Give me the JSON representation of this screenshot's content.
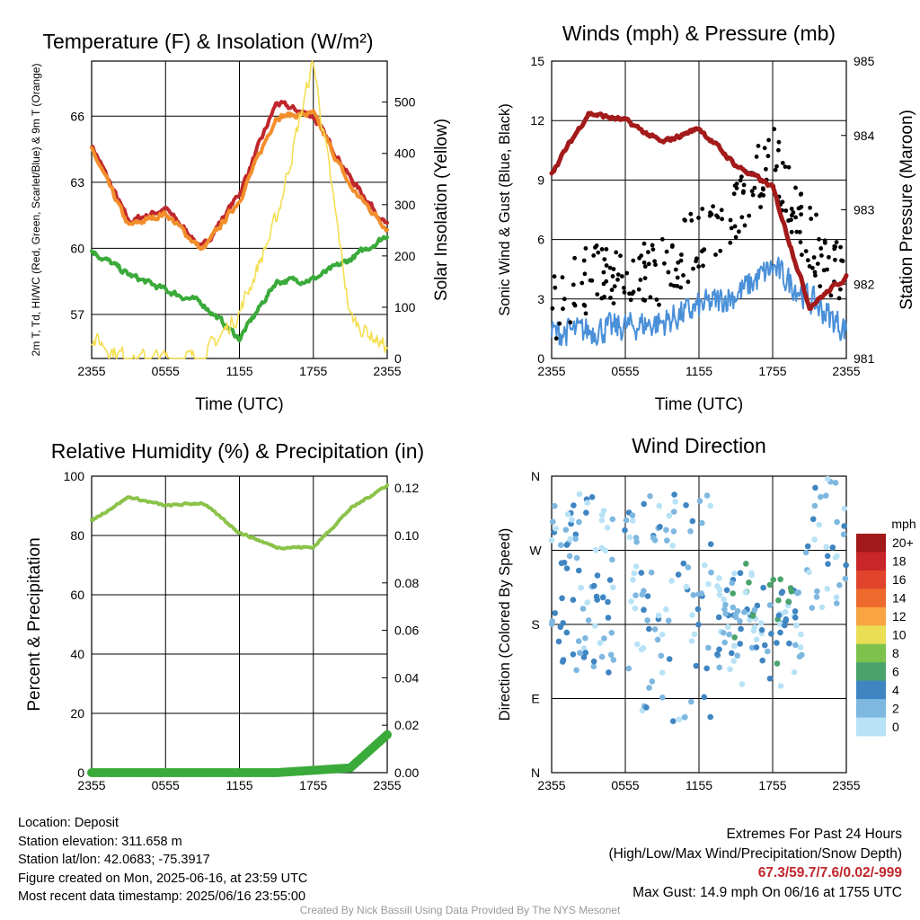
{
  "chart_data": [
    {
      "type": "line",
      "title": "Temperature (F) & Insolation (W/m²)",
      "xlabel": "Time (UTC)",
      "ylabel": "2m T, Td, HI/WC (Red, Green, Scarlet/Blue) & 9m T (Orange)",
      "y2label": "Solar Insolation (Yellow)",
      "x_ticks": [
        "2355",
        "0555",
        "1155",
        "1755",
        "2355"
      ],
      "x": [
        "2355",
        "0255",
        "0555",
        "0855",
        "1155",
        "1455",
        "1755",
        "2055",
        "2355"
      ],
      "ylim": [
        55,
        68.5
      ],
      "y_ticks": [
        57,
        60,
        63,
        66
      ],
      "y2lim": [
        0,
        580
      ],
      "y2_ticks": [
        0,
        100,
        200,
        300,
        400,
        500
      ],
      "grid": true,
      "series": [
        {
          "color": "#c0272d",
          "values": [
            64.7,
            61.2,
            61.8,
            60.0,
            62.5,
            66.6,
            66.0,
            63.2,
            61.0
          ]
        },
        {
          "color": "#1f77b4",
          "values": [
            64.7,
            61.2,
            61.8,
            60.0,
            62.5,
            66.6,
            66.0,
            63.2,
            61.0
          ]
        },
        {
          "color": "#f28e2b",
          "values": [
            64.5,
            61.0,
            61.6,
            59.9,
            62.2,
            66.0,
            66.1,
            62.8,
            60.9
          ]
        },
        {
          "color": "#3aaa3a",
          "values": [
            59.9,
            58.8,
            58.1,
            57.5,
            55.9,
            58.5,
            58.6,
            59.5,
            60.6
          ]
        },
        {
          "color": "#f5de52",
          "axis": "y2",
          "values": [
            40,
            0,
            0,
            0,
            90,
            270,
            580,
            80,
            20
          ]
        }
      ]
    },
    {
      "type": "line",
      "title": "Winds (mph) & Pressure (mb)",
      "xlabel": "Time (UTC)",
      "ylabel": "Sonic Wind & Gust (Blue, Black)",
      "y2label": "Station Pressure (Maroon)",
      "x_ticks": [
        "2355",
        "0555",
        "1155",
        "1755",
        "2355"
      ],
      "x": [
        "2355",
        "0255",
        "0555",
        "0855",
        "1155",
        "1455",
        "1755",
        "2055",
        "2355"
      ],
      "ylim": [
        0,
        15
      ],
      "y_ticks": [
        0,
        3,
        6,
        9,
        12,
        15
      ],
      "y2lim": [
        981,
        985
      ],
      "y2_ticks": [
        981,
        982,
        983,
        984,
        985
      ],
      "grid": true,
      "series": [
        {
          "color": "#4a90d9",
          "values": [
            1.3,
            1.4,
            1.6,
            1.8,
            2.6,
            3.2,
            4.6,
            3.0,
            1.4
          ]
        },
        {
          "color": "#000000",
          "marker": "dot",
          "values": [
            1.8,
            3.5,
            3.2,
            4.0,
            5.5,
            7.0,
            9.5,
            5.5,
            3.0
          ]
        },
        {
          "color": "#a31a1a",
          "axis": "y2",
          "values": [
            983.5,
            984.3,
            984.2,
            983.9,
            984.1,
            983.6,
            983.3,
            981.7,
            982.1
          ]
        }
      ]
    },
    {
      "type": "line",
      "title": "Relative Humidity (%) & Precipitation (in)",
      "ylabel": "Percent & Precipitation",
      "x_ticks": [
        "2355",
        "0555",
        "1155",
        "1755",
        "2355"
      ],
      "x": [
        "2355",
        "0255",
        "0555",
        "0855",
        "1155",
        "1455",
        "1755",
        "2055",
        "2355"
      ],
      "ylim": [
        0,
        100
      ],
      "y_ticks": [
        0,
        20,
        40,
        60,
        80,
        100
      ],
      "y2lim": [
        0,
        0.125
      ],
      "y2_ticks": [
        "0.00",
        "0.02",
        "0.04",
        "0.06",
        "0.08",
        "0.10",
        "0.12"
      ],
      "grid": true,
      "series": [
        {
          "color": "#8bc34a",
          "values": [
            85,
            93,
            90,
            91,
            81,
            76,
            76,
            89,
            97
          ]
        },
        {
          "color": "#3aaa3a",
          "marker": "dot",
          "axis": "y2",
          "values": [
            0,
            0,
            0,
            0,
            0,
            0,
            0.001,
            0.002,
            0.016
          ]
        }
      ]
    },
    {
      "type": "scatter",
      "title": "Wind Direction",
      "ylabel": "Direction (Colored By Speed)",
      "x_ticks": [
        "2355",
        "0555",
        "1155",
        "1755",
        "2355"
      ],
      "y_ticks": [
        "N",
        "E",
        "S",
        "W",
        "N"
      ],
      "ylim": [
        0,
        360
      ],
      "grid": true,
      "colorbar": {
        "unit": "mph",
        "labels": [
          "20+",
          "18",
          "16",
          "14",
          "12",
          "10",
          "8",
          "6",
          "4",
          "2",
          "0"
        ],
        "colors": [
          "#a11919",
          "#c9262a",
          "#e0442a",
          "#ee6a2c",
          "#f8a443",
          "#e9de54",
          "#7dc24d",
          "#49a36a",
          "#3f85c2",
          "#7eb7e0",
          "#b8e2f6"
        ]
      }
    }
  ],
  "footer": {
    "location": "Location: Deposit",
    "elevation": "Station elevation: 311.658 m",
    "latlon": "Station lat/lon: 42.0683; -75.3917",
    "created": "Figure created on Mon, 2025-06-16, at 23:59 UTC",
    "recent": "Most recent data timestamp: 2025/06/16 23:55:00",
    "extremes_title": "Extremes For Past 24 Hours",
    "extremes_sub": "(High/Low/Max Wind/Precipitation/Snow Depth)",
    "extremes_values": "67.3/59.7/7.6/0.02/-999",
    "max_gust": "Max Gust: 14.9 mph On 06/16 at 1755 UTC",
    "credit": "Created By Nick Bassill Using Data Provided By The NYS Mesonet"
  }
}
